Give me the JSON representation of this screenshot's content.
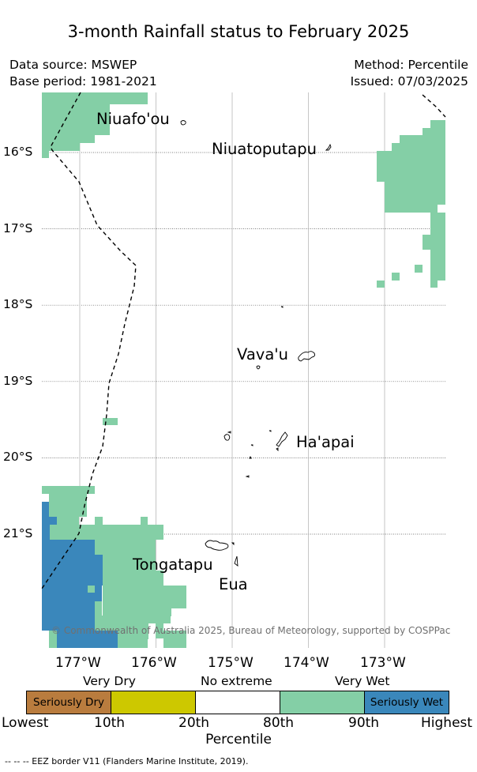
{
  "title": "3-month Rainfall status to February 2025",
  "header": {
    "data_source": "Data source: MSWEP",
    "base_period": "Base period: 1981-2021",
    "method": "Method: Percentile",
    "issued": "Issued: 07/03/2025"
  },
  "map": {
    "lon_range": [
      -177.5,
      -172.25
    ],
    "lat_range": [
      -22.45,
      -15.3
    ],
    "lat_labels": [
      "16°S",
      "17°S",
      "18°S",
      "19°S",
      "20°S",
      "21°S"
    ],
    "lon_labels": [
      "177°W",
      "176°W",
      "175°W",
      "174°W",
      "173°W"
    ],
    "places": {
      "niuafoou": "Niuafo'ou",
      "niuatoputapu": "Niuatoputapu",
      "vavau": "Vava'u",
      "haapai": "Ha'apai",
      "tongatapu": "Tongatapu",
      "eua": "Eua"
    },
    "copyright": "© Commonwealth of Australia 2025, Bureau of Meteorology, supported by COSPPac",
    "colors": {
      "very_wet": "#84cfa6",
      "seriously_wet": "#3a87bb",
      "border": "#000000",
      "grid": "#b8b8b8"
    }
  },
  "legend": {
    "category_labels": {
      "very_dry": "Very Dry",
      "no_extreme": "No extreme",
      "very_wet": "Very Wet"
    },
    "segments": [
      {
        "label": "Seriously Dry",
        "color": "#b97c3e"
      },
      {
        "label": "",
        "color": "#cdc800"
      },
      {
        "label": "",
        "color": "#ffffff"
      },
      {
        "label": "",
        "color": "#84cfa6"
      },
      {
        "label": "Seriously Wet",
        "color": "#3a87bb"
      }
    ],
    "ticks": [
      "Lowest",
      "10th",
      "20th",
      "80th",
      "90th",
      "Highest"
    ],
    "axis_label": "Percentile"
  },
  "eez_note": "--  --  -- EEZ border V11 (Flanders Marine Institute, 2019)."
}
